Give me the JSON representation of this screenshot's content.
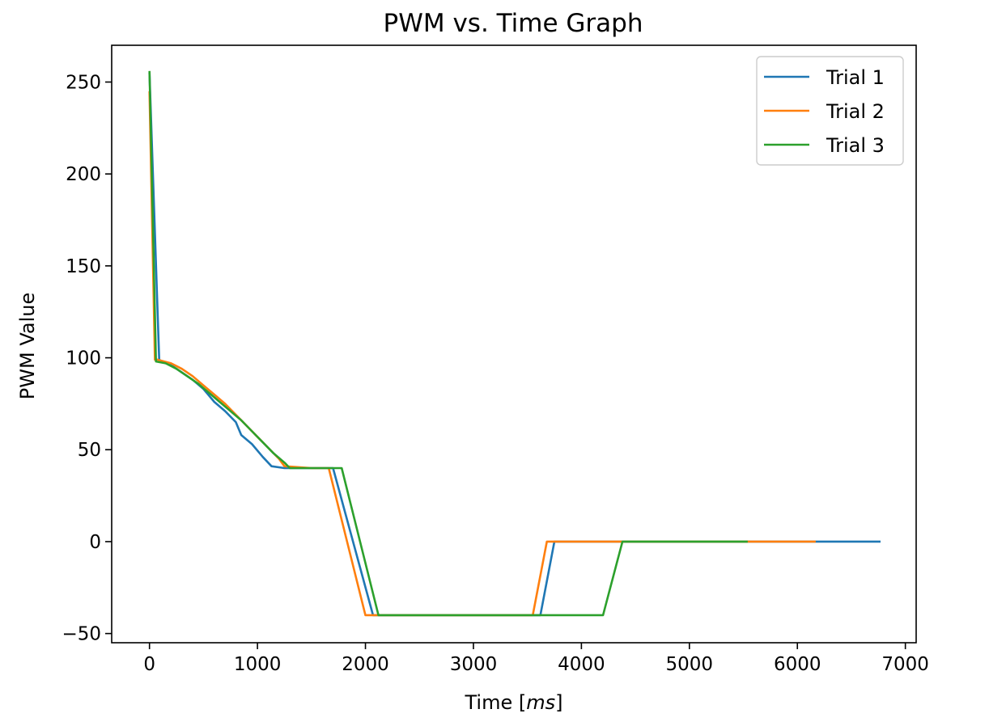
{
  "chart_data": {
    "type": "line",
    "title": "PWM vs. Time Graph",
    "xlabel": {
      "prefix": "Time [",
      "unit": "ms",
      "suffix": "]"
    },
    "ylabel": "PWM Value",
    "xlim": [
      -350,
      7100
    ],
    "ylim": [
      -55,
      270
    ],
    "xticks": [
      0,
      1000,
      2000,
      3000,
      4000,
      5000,
      6000,
      7000
    ],
    "yticks": [
      -50,
      0,
      50,
      100,
      150,
      200,
      250
    ],
    "ytick_labels": [
      "−50",
      "0",
      "50",
      "100",
      "150",
      "200",
      "250"
    ],
    "grid": false,
    "legend_position": "top-right",
    "series": [
      {
        "name": "Trial 1",
        "color": "#1f77b4",
        "x": [
          0,
          90,
          110,
          200,
          300,
          400,
          500,
          600,
          700,
          800,
          850,
          950,
          1050,
          1130,
          1250,
          1300,
          1700,
          2070,
          2100,
          3580,
          3620,
          3750,
          4000,
          5000,
          6000,
          6770
        ],
        "y": [
          255,
          99,
          98,
          96,
          92,
          88,
          83,
          76,
          71,
          65,
          58,
          53,
          46,
          41,
          40,
          40,
          40,
          -40,
          -40,
          -40,
          -40,
          0,
          0,
          0,
          0,
          0
        ]
      },
      {
        "name": "Trial 2",
        "color": "#ff7f0e",
        "x": [
          0,
          50,
          70,
          200,
          300,
          400,
          500,
          600,
          700,
          800,
          900,
          1000,
          1100,
          1200,
          1250,
          1500,
          1660,
          2000,
          2040,
          3520,
          3550,
          3680,
          3700,
          4000,
          5000,
          6000,
          6170
        ],
        "y": [
          245,
          99,
          99,
          97,
          94,
          90,
          85,
          80,
          75,
          69,
          63,
          57,
          51,
          45,
          41,
          40,
          40,
          -40,
          -40,
          -40,
          -40,
          0,
          0,
          0,
          0,
          0,
          0
        ]
      },
      {
        "name": "Trial 3",
        "color": "#2ca02c",
        "x": [
          0,
          60,
          150,
          250,
          350,
          450,
          550,
          650,
          750,
          850,
          950,
          1050,
          1150,
          1250,
          1300,
          1600,
          1780,
          2120,
          2150,
          3000,
          4200,
          4380,
          5000,
          5540
        ],
        "y": [
          256,
          98,
          97,
          94,
          90,
          86,
          81,
          76,
          71,
          66,
          60,
          54,
          48,
          43,
          40,
          40,
          40,
          -40,
          -40,
          -40,
          -40,
          0,
          0,
          0
        ]
      }
    ]
  }
}
